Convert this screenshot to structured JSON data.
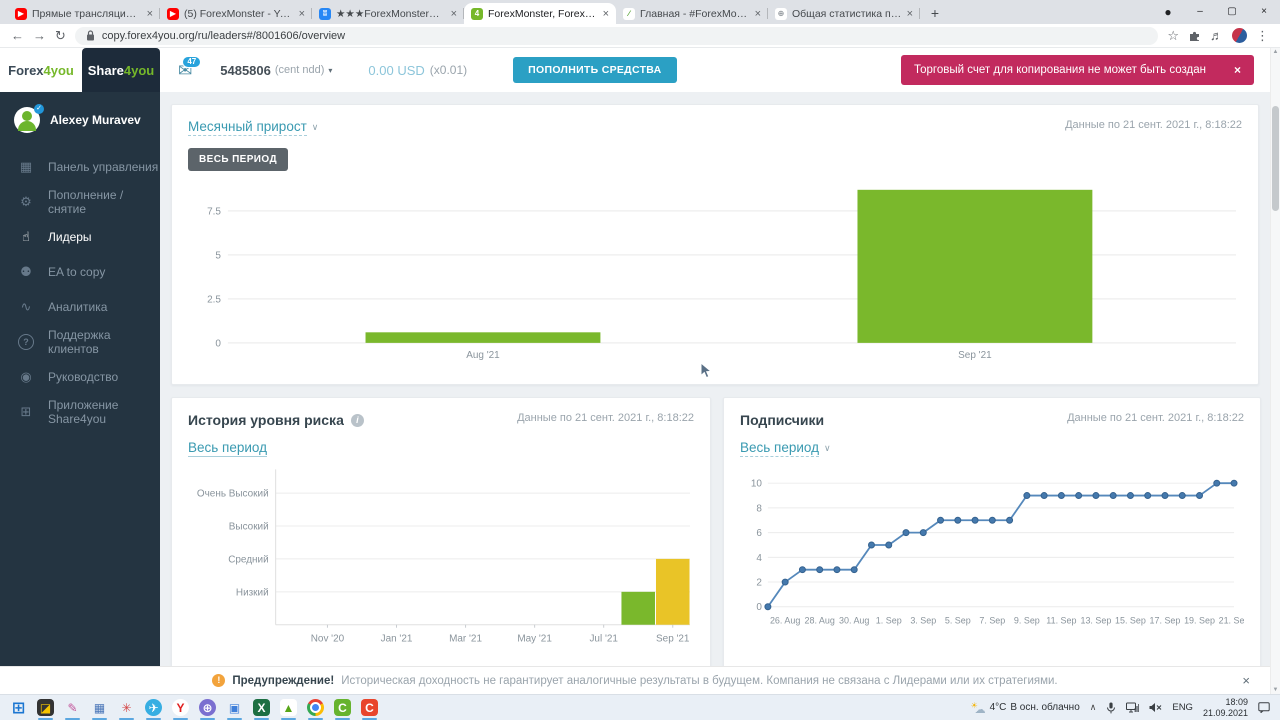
{
  "browser": {
    "tabs": [
      {
        "title": "Прямые трансляции - YouTube",
        "icon": "youtube-favicon",
        "glyph": "▶",
        "fg": "#ffffff",
        "bg": "#ff0000",
        "active": false
      },
      {
        "title": "(5) ForexMonster - YouTube",
        "icon": "youtube-favicon",
        "glyph": "▶",
        "fg": "#ffffff",
        "bg": "#ff0000",
        "active": false
      },
      {
        "title": "★★★ForexMonster★★★",
        "icon": "vk-favicon",
        "glyph": "ʬ",
        "fg": "#ffffff",
        "bg": "#2787f5",
        "active": false
      },
      {
        "title": "ForexMonster, ForexMonster: Le",
        "icon": "forex4you-favicon",
        "glyph": "4",
        "fg": "#ffffff",
        "bg": "#76b82a",
        "active": true
      },
      {
        "title": "Главная - #ForexMonster - тор",
        "icon": "sprout-favicon",
        "glyph": "∕",
        "fg": "#5aa53a",
        "bg": "#ffffff",
        "active": false
      },
      {
        "title": "Общая статистика портфеля",
        "icon": "globe-favicon",
        "glyph": "⊕",
        "fg": "#8a9096",
        "bg": "#ffffff",
        "active": false
      }
    ],
    "url": "copy.forex4you.org/ru/leaders#/8001606/overview"
  },
  "icons": {
    "back": "←",
    "forward": "→",
    "refresh": "↻",
    "star": "☆",
    "menu": "⋮",
    "media_list": "♬",
    "close": "×",
    "minimize": "–",
    "maximize": "▢",
    "record": "●",
    "new_tab": "+",
    "dropdown": "▾",
    "caret": "∨",
    "envelope": "✉",
    "chevron_up": "∧",
    "scroll_up": "▲",
    "scroll_down": "▼",
    "warning": "!",
    "info": "i"
  },
  "brand": {
    "forex": "Forex",
    "share": "Share",
    "suffix": "4you"
  },
  "header": {
    "mail_badge": "47",
    "account_number": "5485806",
    "account_type": "(cent ndd)",
    "balance": "0.00 USD",
    "multiplier": "(x0.01)",
    "deposit_button": "ПОПОЛНИТЬ СРЕДСТВА",
    "alert": "Торговый счет для копирования не может быть создан"
  },
  "sidebar": {
    "user": "Alexey Muravev",
    "items": [
      {
        "label": "Панель управления",
        "icon": "dashboard-icon",
        "glyph": "▦",
        "active": false
      },
      {
        "label": "Пополнение / снятие",
        "icon": "gear-icon",
        "glyph": "⚙",
        "active": false
      },
      {
        "label": "Лидеры",
        "icon": "thumbs-up-icon",
        "glyph": "☝",
        "active": true
      },
      {
        "label": "EA to copy",
        "icon": "robot-head-icon",
        "glyph": "⚉",
        "active": false
      },
      {
        "label": "Аналитика",
        "icon": "line-chart-icon",
        "glyph": "∿",
        "active": false
      },
      {
        "label": "Поддержка клиентов",
        "icon": "question-icon",
        "glyph": "?",
        "active": false
      },
      {
        "label": "Руководство",
        "icon": "eye-icon",
        "glyph": "◉",
        "active": false
      },
      {
        "label": "Приложение Share4you",
        "icon": "app-grid-icon",
        "glyph": "⊞",
        "active": false
      }
    ]
  },
  "cards": {
    "growth": {
      "title": "Месячный прирост",
      "period_button": "ВЕСЬ ПЕРИОД",
      "date": "Данные по 21 сент. 2021 г., 8:18:22"
    },
    "risk": {
      "title": "История уровня риска",
      "period_link": "Весь период",
      "date": "Данные по 21 сент. 2021 г., 8:18:22"
    },
    "subscribers": {
      "title": "Подписчики",
      "period_link": "Весь период",
      "date": "Данные по 21 сент. 2021 г., 8:18:22"
    }
  },
  "warning": {
    "label": "Предупреждение!",
    "text": "Историческая доходность не гарантирует аналогичные результаты в будущем. Компания не связана с Лидерами или их стратегиями."
  },
  "taskbar": {
    "apps": [
      {
        "name": "start-button",
        "glyph": "⊞",
        "fg": "#1b76d1",
        "bg": "transparent",
        "shape": "square",
        "running": false
      },
      {
        "name": "launcher-app",
        "glyph": "◪",
        "fg": "#f5c400",
        "bg": "#333333",
        "shape": "square",
        "running": true
      },
      {
        "name": "graphics-editor-app",
        "glyph": "✎",
        "fg": "#c2559a",
        "bg": "transparent",
        "shape": "square",
        "running": true
      },
      {
        "name": "calculator-app",
        "glyph": "▦",
        "fg": "#4a76b8",
        "bg": "transparent",
        "shape": "square",
        "running": true
      },
      {
        "name": "media-player-app",
        "glyph": "✳",
        "fg": "#d44444",
        "bg": "transparent",
        "shape": "square",
        "running": true
      },
      {
        "name": "telegram-app",
        "glyph": "✈",
        "fg": "#ffffff",
        "bg": "#37aee2",
        "shape": "circle",
        "running": true
      },
      {
        "name": "yandex-browser-app",
        "glyph": "Y",
        "fg": "#e02020",
        "bg": "#ffffff",
        "shape": "circle",
        "running": true
      },
      {
        "name": "secondary-browser-app",
        "glyph": "⊕",
        "fg": "#ffffff",
        "bg": "#7b6fd0",
        "shape": "circle",
        "running": true
      },
      {
        "name": "device-manager-app",
        "glyph": "▣",
        "fg": "#3f7fd9",
        "bg": "transparent",
        "shape": "square",
        "running": true
      },
      {
        "name": "spreadsheet-app",
        "glyph": "X",
        "fg": "#ffffff",
        "bg": "#1d6f42",
        "shape": "square",
        "running": true
      },
      {
        "name": "image-viewer-app",
        "glyph": "▲",
        "fg": "#58a618",
        "bg": "#ffffff",
        "shape": "square",
        "running": true
      },
      {
        "name": "chrome-app",
        "glyph": "",
        "fg": "",
        "bg": "chrome",
        "shape": "circle",
        "running": true
      },
      {
        "name": "camtasia-app",
        "glyph": "C",
        "fg": "#ffffff",
        "bg": "#66b32e",
        "shape": "square",
        "running": true
      },
      {
        "name": "video-editor-app",
        "glyph": "C",
        "fg": "#ffffff",
        "bg": "#e8452c",
        "shape": "square",
        "running": true
      }
    ],
    "tray": {
      "temp": "4°C",
      "cond": "В осн. облачно",
      "lang": "ENG",
      "time": "18:09",
      "date": "21.09.2021"
    }
  },
  "chart_data": [
    {
      "id": "monthly_growth",
      "type": "bar",
      "title": "Месячный прирост",
      "categories": [
        "Aug '21",
        "Sep '21"
      ],
      "values": [
        0.6,
        8.7
      ],
      "ylim": [
        0,
        8.85
      ],
      "yticks": [
        0,
        2.5,
        5,
        7.5
      ],
      "bar_color": "#7ab82c",
      "bar_centers": [
        0.253,
        0.741
      ],
      "bar_width_frac": 0.233,
      "grid": true,
      "xlabel": "",
      "ylabel": ""
    },
    {
      "id": "risk_level_history",
      "type": "bar",
      "title": "История уровня риска",
      "y_categories": [
        "Низкий",
        "Средний",
        "Высокий",
        "Очень Высокий"
      ],
      "x_ticks": [
        "Nov '20",
        "Jan '21",
        "Mar '21",
        "May '21",
        "Jul '21",
        "Sep '21"
      ],
      "x_tick_slots": [
        1,
        3,
        5,
        7,
        9,
        11
      ],
      "months_span": "Oct '20 – Sep '21",
      "bars": [
        {
          "x": "Aug '21",
          "slot": 10,
          "level": "Низкий",
          "value": 1,
          "color": "#7ab82c"
        },
        {
          "x": "Sep '21",
          "slot": 11,
          "level": "Средний",
          "value": 2,
          "color": "#e9c427"
        }
      ],
      "levels_max": 4.6
    },
    {
      "id": "subscribers",
      "type": "line",
      "title": "Подписчики",
      "x": [
        "25. Aug",
        "26. Aug",
        "27. Aug",
        "28. Aug",
        "29. Aug",
        "30. Aug",
        "31. Aug",
        "1. Sep",
        "2. Sep",
        "3. Sep",
        "4. Sep",
        "5. Sep",
        "6. Sep",
        "7. Sep",
        "8. Sep",
        "9. Sep",
        "10. Sep",
        "11. Sep",
        "12. Sep",
        "13. Sep",
        "14. Sep",
        "15. Sep",
        "16. Sep",
        "17. Sep",
        "18. Sep",
        "19. Sep",
        "20. Sep",
        "21. Sep"
      ],
      "values": [
        0,
        2,
        3,
        3,
        3,
        3,
        5,
        5,
        6,
        6,
        7,
        7,
        7,
        7,
        7,
        9,
        9,
        9,
        9,
        9,
        9,
        9,
        9,
        9,
        9,
        9,
        10,
        10
      ],
      "x_tick_labels": [
        "26. Aug",
        "28. Aug",
        "30. Aug",
        "1. Sep",
        "3. Sep",
        "5. Sep",
        "7. Sep",
        "9. Sep",
        "11. Sep",
        "13. Sep",
        "15. Sep",
        "17. Sep",
        "19. Sep",
        "21. Sep"
      ],
      "yticks": [
        0,
        2,
        4,
        6,
        8,
        10
      ],
      "ylim": [
        0,
        10.8
      ],
      "line_color": "#5588bb",
      "dot_color": "#4579ad",
      "dot_stroke": "#35628f"
    }
  ]
}
